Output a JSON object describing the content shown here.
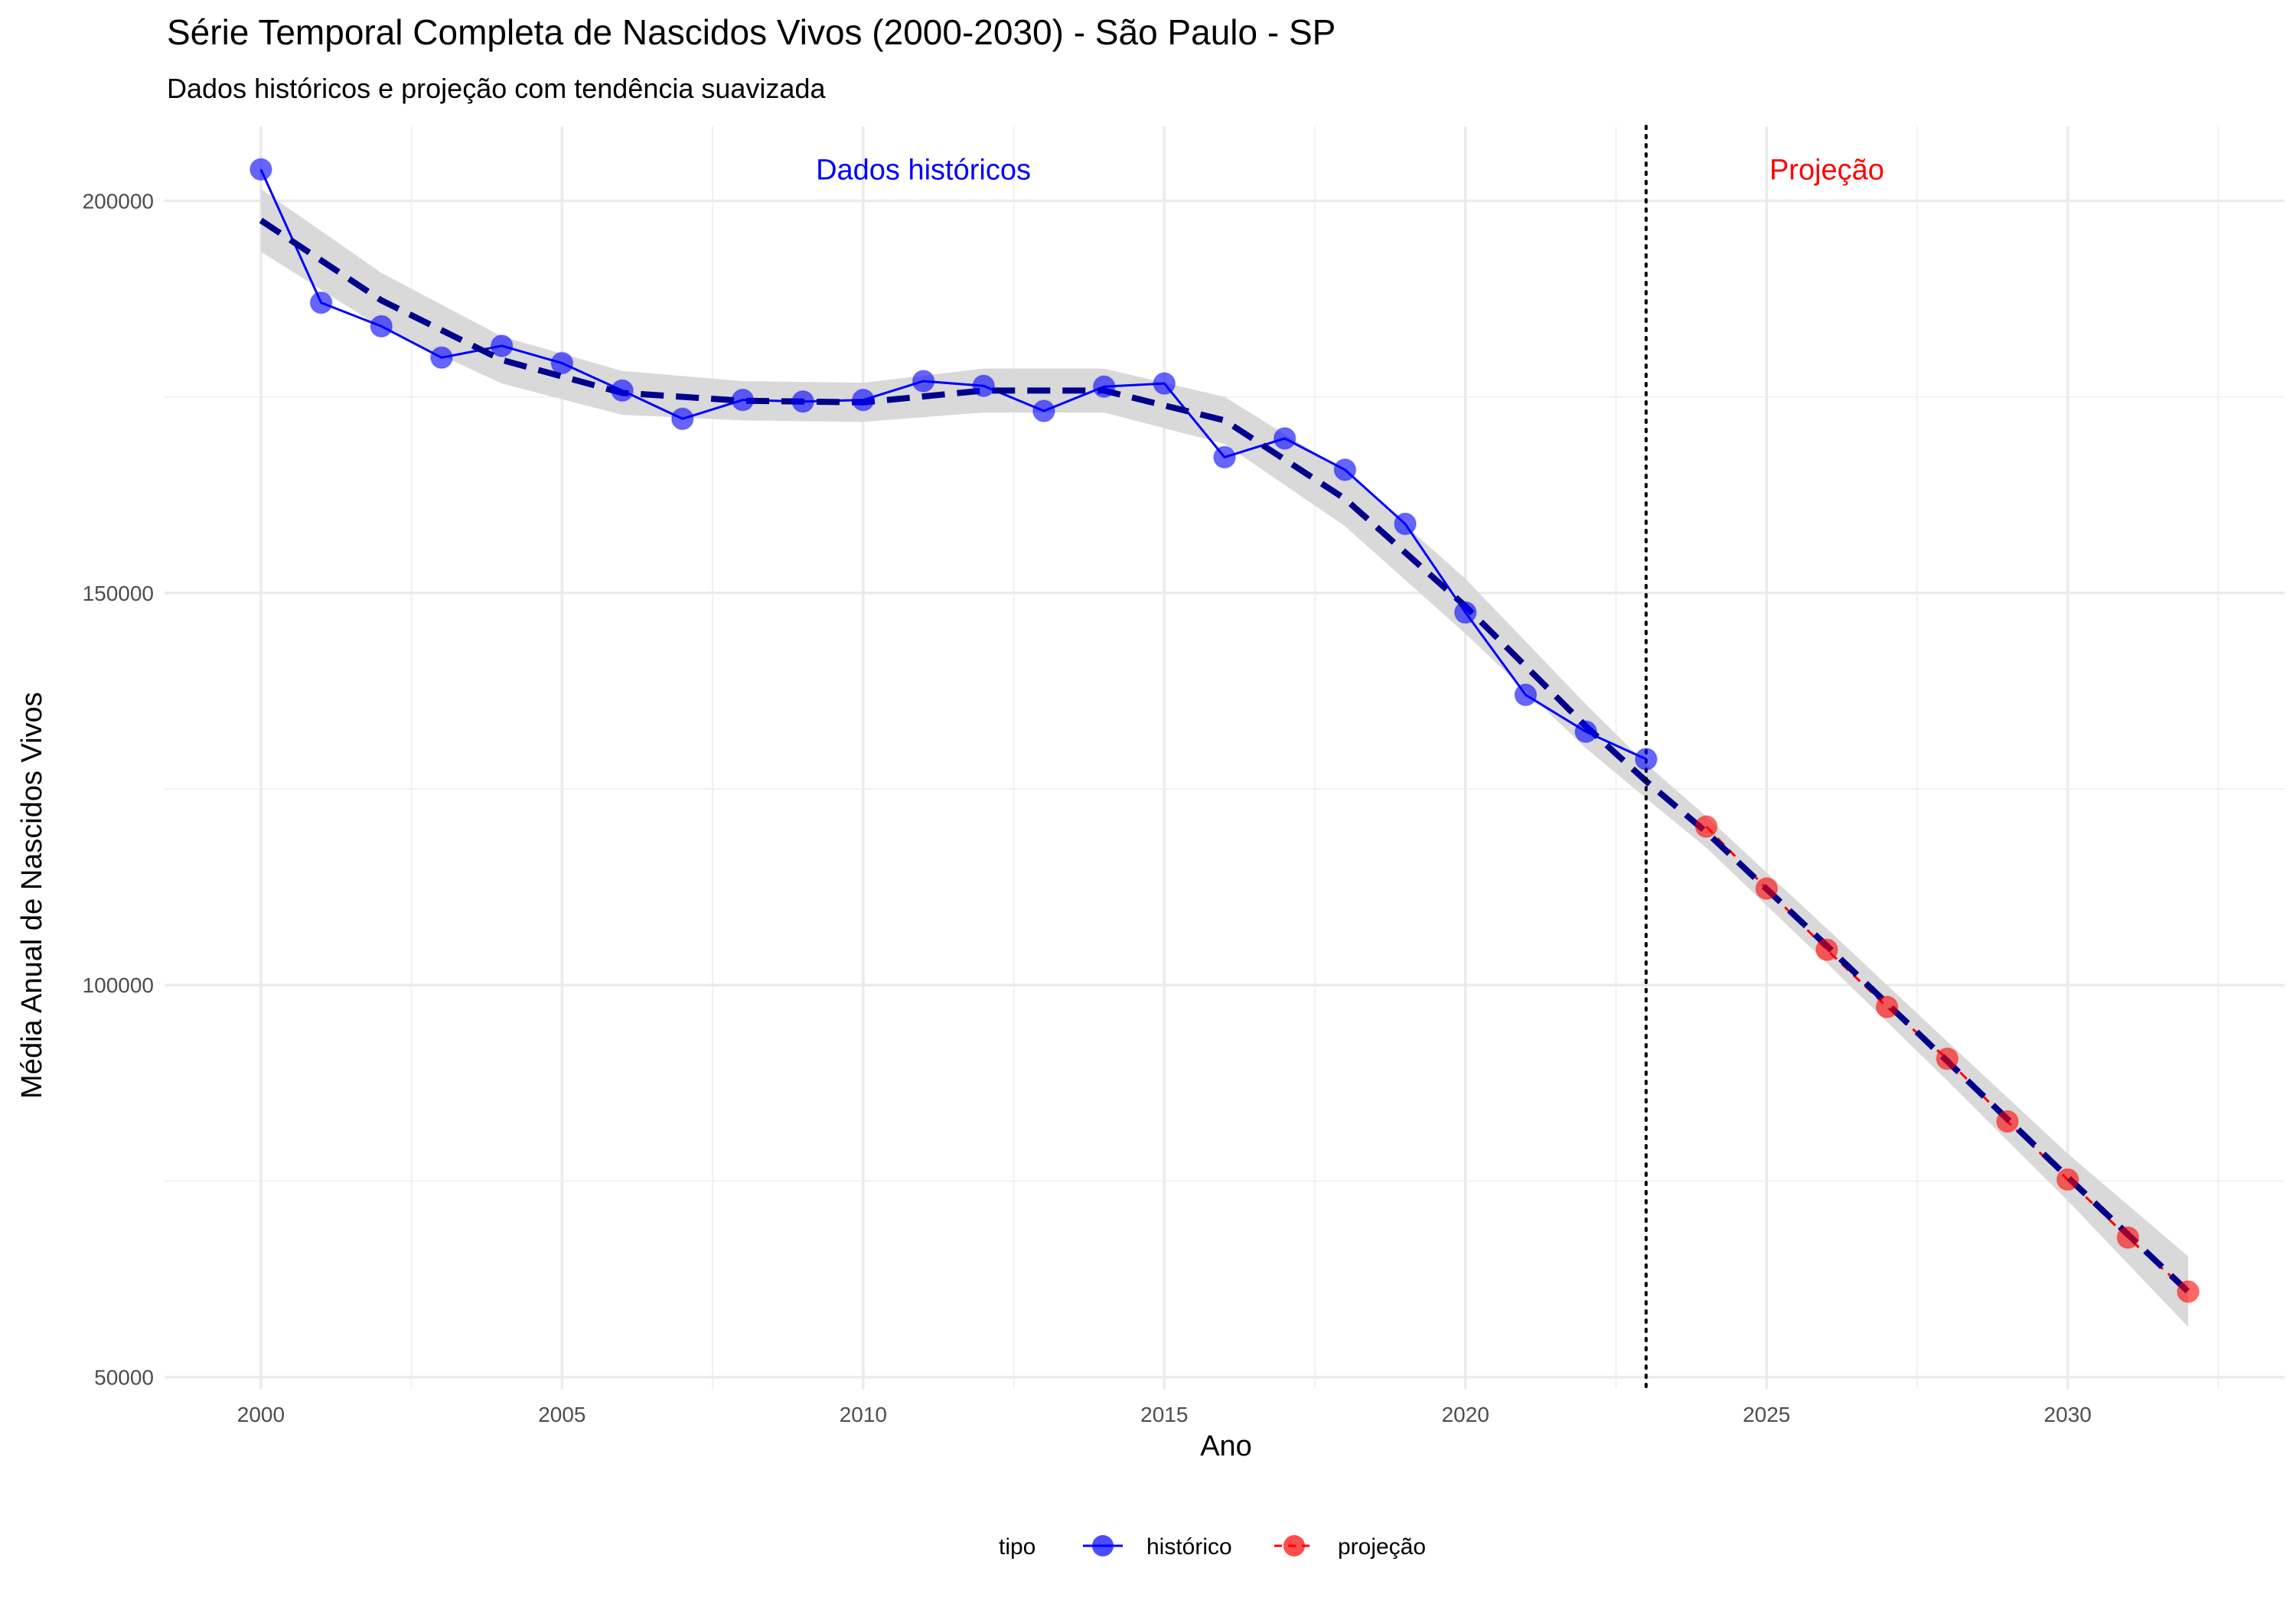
{
  "chart_data": {
    "type": "line",
    "title": "Série Temporal Completa de Nascidos Vivos (2000-2030) -  São Paulo - SP",
    "subtitle": "Dados históricos e projeção com tendência suavizada",
    "xlabel": "Ano",
    "ylabel": "Média Anual de Nascidos Vivos",
    "xlim": [
      1998.4,
      2033.6
    ],
    "ylim": [
      48500,
      209500
    ],
    "x_ticks": [
      2000,
      2005,
      2010,
      2015,
      2020,
      2025,
      2030
    ],
    "y_ticks": [
      50000,
      100000,
      150000,
      200000
    ],
    "grid": true,
    "legend": {
      "title": "tipo",
      "position": "bottom"
    },
    "annotations": [
      {
        "text": "Dados históricos",
        "x": 2011,
        "y": 204000,
        "color": "#0000ff"
      },
      {
        "text": "Projeção",
        "x": 2026,
        "y": 204000,
        "color": "#ff0000"
      }
    ],
    "vline": {
      "x": 2023,
      "style": "dotted",
      "color": "#000000"
    },
    "series": [
      {
        "name": "histórico",
        "color": "#0000ff",
        "line": "solid",
        "x": [
          2000,
          2001,
          2002,
          2003,
          2004,
          2005,
          2006,
          2007,
          2008,
          2009,
          2010,
          2011,
          2012,
          2013,
          2014,
          2015,
          2016,
          2017,
          2018,
          2019,
          2020,
          2021,
          2022,
          2023
        ],
        "values": [
          204000,
          187000,
          184000,
          180000,
          181500,
          179300,
          175800,
          172200,
          174600,
          174400,
          174600,
          177000,
          176400,
          173200,
          176300,
          176700,
          167300,
          169700,
          165700,
          158800,
          147500,
          137000,
          132300,
          128800
        ]
      },
      {
        "name": "projeção",
        "color": "#ff0000",
        "line": "dashed",
        "x": [
          2024,
          2025,
          2026,
          2027,
          2028,
          2029,
          2030,
          2031,
          2032
        ],
        "values": [
          120200,
          112300,
          104500,
          97200,
          90600,
          82600,
          75200,
          67800,
          60900
        ]
      }
    ],
    "trend": {
      "color": "#00008b",
      "band_color": "#d9d9d9",
      "x": [
        2000,
        2002,
        2004,
        2006,
        2008,
        2010,
        2012,
        2014,
        2016,
        2018,
        2020,
        2022,
        2023,
        2024,
        2026,
        2028,
        2030,
        2032
      ],
      "values": [
        197500,
        187300,
        179700,
        175500,
        174500,
        174300,
        175800,
        175800,
        172000,
        162000,
        148300,
        133000,
        126000,
        119500,
        105000,
        90300,
        75500,
        60900
      ],
      "band": [
        4000,
        3500,
        3000,
        2800,
        2500,
        2500,
        2800,
        2800,
        3000,
        3500,
        3500,
        2800,
        2200,
        2000,
        2200,
        2500,
        3000,
        4500
      ]
    }
  }
}
